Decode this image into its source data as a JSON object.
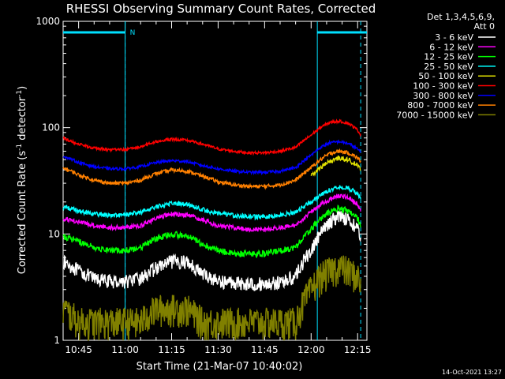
{
  "chart_data": {
    "type": "line",
    "title": "RHESSI Observing Summary Count Rates, Corrected",
    "xlabel": "Start Time (21-Mar-07 10:40:02)",
    "ylabel": "Corrected Count Rate (s⁻¹ detector⁻¹)",
    "ylabel_main": "Corrected Count Rate (s",
    "ylabel_sup1": "-1",
    "ylabel_mid": " detector",
    "ylabel_sup2": "-1",
    "ylabel_end": ")",
    "yscale": "log",
    "xlim": [
      "10:40",
      "12:18"
    ],
    "ylim": [
      1,
      1000
    ],
    "x_ticks": [
      "10:45",
      "11:00",
      "11:15",
      "11:30",
      "11:45",
      "12:00",
      "12:15"
    ],
    "y_ticks": [
      "1",
      "10",
      "100",
      "1000"
    ],
    "legend_header": [
      "Det 1,3,4,5,6,9,",
      "Att 0"
    ],
    "legend_position": "right",
    "timestamp": "14-Oct-2021 13:27",
    "flag_label": "N",
    "flags": [
      {
        "name": "N",
        "color": "#00e0ff",
        "intervals": [
          [
            "10:40",
            "11:00"
          ],
          [
            "12:02",
            "12:18"
          ]
        ]
      }
    ],
    "night_boundaries": [
      "11:00",
      "12:02"
    ],
    "eclipse_markers": [
      "10:40",
      "11:00",
      "12:02",
      "12:16"
    ],
    "gap_markers": [
      "11:00",
      "12:16"
    ],
    "series": [
      {
        "name": "3 - 6 keV",
        "color": "#ffffff",
        "time": [
          "10:40",
          "10:45",
          "10:50",
          "10:55",
          "11:00",
          "11:05",
          "11:10",
          "11:15",
          "11:20",
          "11:25",
          "11:30",
          "11:35",
          "11:40",
          "11:45",
          "11:50",
          "11:55",
          "12:00",
          "12:03",
          "12:06",
          "12:09",
          "12:12",
          "12:15",
          "12:16"
        ],
        "values": [
          5.5,
          4.5,
          3.8,
          3.6,
          3.6,
          3.8,
          4.8,
          5.5,
          5.5,
          4.2,
          3.6,
          3.5,
          3.4,
          3.4,
          3.5,
          4.0,
          7.0,
          10.0,
          13.0,
          15.0,
          14.0,
          11.0,
          9.0
        ]
      },
      {
        "name": "6 - 12 keV",
        "color": "#ff00ff",
        "time": [
          "10:40",
          "10:45",
          "10:50",
          "10:55",
          "11:00",
          "11:05",
          "11:10",
          "11:15",
          "11:20",
          "11:25",
          "11:30",
          "11:35",
          "11:40",
          "11:45",
          "11:50",
          "11:55",
          "12:00",
          "12:03",
          "12:06",
          "12:09",
          "12:12",
          "12:15",
          "12:16"
        ],
        "values": [
          14.0,
          13.0,
          12.0,
          11.5,
          11.5,
          12.0,
          14.0,
          15.5,
          15.0,
          13.5,
          12.0,
          11.5,
          11.0,
          11.0,
          11.5,
          12.0,
          16.0,
          19.0,
          21.0,
          23.0,
          22.0,
          19.0,
          17.0
        ]
      },
      {
        "name": "12 - 25 keV",
        "color": "#00ff00",
        "time": [
          "10:40",
          "10:45",
          "10:50",
          "10:55",
          "11:00",
          "11:05",
          "11:10",
          "11:15",
          "11:20",
          "11:25",
          "11:30",
          "11:35",
          "11:40",
          "11:45",
          "11:50",
          "11:55",
          "12:00",
          "12:03",
          "12:06",
          "12:09",
          "12:12",
          "12:15",
          "12:16"
        ],
        "values": [
          9.5,
          8.5,
          7.5,
          7.0,
          7.0,
          7.5,
          9.0,
          10.0,
          9.5,
          8.0,
          7.0,
          6.5,
          6.5,
          6.5,
          7.0,
          7.5,
          11.0,
          14.0,
          16.0,
          17.5,
          16.5,
          14.0,
          12.0
        ]
      },
      {
        "name": "25 - 50 keV",
        "color": "#00ffff",
        "time": [
          "10:40",
          "10:45",
          "10:50",
          "10:55",
          "11:00",
          "11:05",
          "11:10",
          "11:15",
          "11:20",
          "11:25",
          "11:30",
          "11:35",
          "11:40",
          "11:45",
          "11:50",
          "11:55",
          "12:00",
          "12:03",
          "12:06",
          "12:09",
          "12:12",
          "12:15",
          "12:16"
        ],
        "values": [
          18.0,
          16.5,
          15.5,
          15.0,
          15.0,
          16.0,
          18.0,
          19.5,
          19.0,
          17.0,
          15.5,
          15.0,
          14.5,
          14.5,
          15.0,
          16.0,
          20.0,
          23.0,
          26.0,
          28.0,
          27.0,
          24.0,
          21.0
        ]
      },
      {
        "name": "50 - 100 keV",
        "color": "#e0e000",
        "time": [
          "12:00",
          "12:03",
          "12:06",
          "12:09",
          "12:12",
          "12:15",
          "12:16"
        ],
        "values": [
          35.0,
          42.0,
          48.0,
          52.0,
          50.0,
          44.0,
          40.0
        ]
      },
      {
        "name": "100 - 300 keV",
        "color": "#ff0000",
        "time": [
          "10:40",
          "10:45",
          "10:50",
          "10:55",
          "11:00",
          "11:05",
          "11:10",
          "11:15",
          "11:20",
          "11:25",
          "11:30",
          "11:35",
          "11:40",
          "11:45",
          "11:50",
          "11:55",
          "12:00",
          "12:03",
          "12:06",
          "12:09",
          "12:12",
          "12:15",
          "12:16"
        ],
        "values": [
          80.0,
          70.0,
          64.0,
          62.0,
          62.0,
          66.0,
          74.0,
          78.0,
          76.0,
          70.0,
          63.0,
          60.0,
          58.0,
          58.0,
          60.0,
          65.0,
          85.0,
          100.0,
          112.0,
          115.0,
          110.0,
          95.0,
          85.0
        ]
      },
      {
        "name": "300 - 800 keV",
        "color": "#0000ff",
        "time": [
          "10:40",
          "10:45",
          "10:50",
          "10:55",
          "11:00",
          "11:05",
          "11:10",
          "11:15",
          "11:20",
          "11:25",
          "11:30",
          "11:35",
          "11:40",
          "11:45",
          "11:50",
          "11:55",
          "12:00",
          "12:03",
          "12:06",
          "12:09",
          "12:12",
          "12:15",
          "12:16"
        ],
        "values": [
          54.0,
          47.0,
          43.0,
          41.0,
          41.0,
          43.0,
          47.0,
          49.0,
          48.0,
          44.0,
          41.0,
          39.0,
          38.0,
          38.0,
          39.0,
          42.0,
          55.0,
          65.0,
          72.0,
          74.0,
          71.0,
          63.0,
          58.0
        ]
      },
      {
        "name": "800 - 7000 keV",
        "color": "#ff8000",
        "time": [
          "10:40",
          "10:45",
          "10:50",
          "10:55",
          "11:00",
          "11:05",
          "11:10",
          "11:15",
          "11:20",
          "11:25",
          "11:30",
          "11:35",
          "11:40",
          "11:45",
          "11:50",
          "11:55",
          "12:00",
          "12:03",
          "12:06",
          "12:09",
          "12:12",
          "12:15",
          "12:16"
        ],
        "values": [
          42.0,
          36.0,
          32.0,
          30.0,
          30.0,
          32.0,
          37.0,
          40.0,
          39.0,
          35.0,
          31.0,
          29.0,
          28.0,
          28.0,
          29.0,
          32.0,
          42.0,
          50.0,
          57.0,
          60.0,
          58.0,
          52.0,
          48.0
        ]
      },
      {
        "name": "7000 - 15000 keV",
        "color": "#808000",
        "time": [
          "10:40",
          "10:45",
          "10:50",
          "10:55",
          "11:00",
          "11:05",
          "11:10",
          "11:15",
          "11:20",
          "11:25",
          "11:30",
          "11:35",
          "11:40",
          "11:45",
          "11:50",
          "11:55",
          "12:00",
          "12:03",
          "12:06",
          "12:09",
          "12:12",
          "12:15",
          "12:16"
        ],
        "values": [
          2.0,
          1.5,
          1.5,
          1.5,
          1.5,
          1.5,
          2.0,
          2.0,
          2.0,
          1.5,
          1.5,
          1.5,
          1.5,
          1.5,
          1.5,
          1.5,
          3.0,
          4.0,
          4.5,
          5.0,
          4.5,
          4.0,
          3.5
        ]
      }
    ]
  }
}
